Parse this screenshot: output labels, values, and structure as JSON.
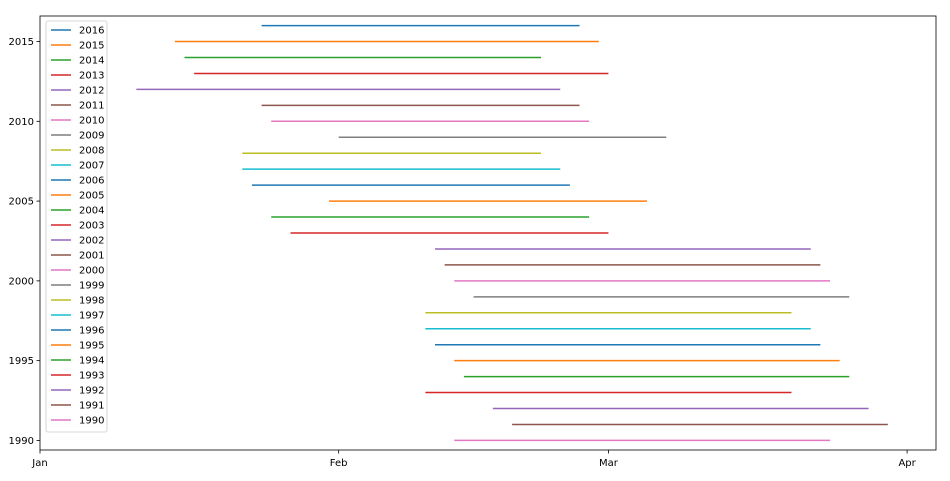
{
  "chart_data": {
    "type": "line",
    "title": "",
    "xlabel": "",
    "ylabel": "",
    "xlim": [
      "Jan 1",
      "Apr 4"
    ],
    "ylim": [
      1989.4,
      2016.6
    ],
    "x_ticks": [
      {
        "label": "Jan",
        "day": 0
      },
      {
        "label": "Feb",
        "day": 31
      },
      {
        "label": "Mar",
        "day": 59
      },
      {
        "label": "Apr",
        "day": 90
      }
    ],
    "y_ticks": [
      {
        "label": "1990",
        "value": 1990
      },
      {
        "label": "1995",
        "value": 1995
      },
      {
        "label": "2000",
        "value": 2000
      },
      {
        "label": "2005",
        "value": 2005
      },
      {
        "label": "2010",
        "value": 2010
      },
      {
        "label": "2015",
        "value": 2015
      }
    ],
    "grid": false,
    "legend": "upper-left",
    "colors": [
      "#1f77b4",
      "#ff7f0e",
      "#2ca02c",
      "#d62728",
      "#9467bd",
      "#8c564b",
      "#e377c2",
      "#7f7f7f",
      "#bcbd22",
      "#17becf"
    ],
    "series": [
      {
        "name": "2016",
        "year": 2016,
        "start": "Jan 24",
        "end": "Feb 26"
      },
      {
        "name": "2015",
        "year": 2015,
        "start": "Jan 15",
        "end": "Feb 28"
      },
      {
        "name": "2014",
        "year": 2014,
        "start": "Jan 16",
        "end": "Feb 22"
      },
      {
        "name": "2013",
        "year": 2013,
        "start": "Jan 17",
        "end": "Mar 1"
      },
      {
        "name": "2012",
        "year": 2012,
        "start": "Jan 11",
        "end": "Feb 24"
      },
      {
        "name": "2011",
        "year": 2011,
        "start": "Jan 24",
        "end": "Feb 26"
      },
      {
        "name": "2010",
        "year": 2010,
        "start": "Jan 25",
        "end": "Feb 27"
      },
      {
        "name": "2009",
        "year": 2009,
        "start": "Feb 1",
        "end": "Mar 7"
      },
      {
        "name": "2008",
        "year": 2008,
        "start": "Jan 22",
        "end": "Feb 22"
      },
      {
        "name": "2007",
        "year": 2007,
        "start": "Jan 22",
        "end": "Feb 24"
      },
      {
        "name": "2006",
        "year": 2006,
        "start": "Jan 23",
        "end": "Feb 25"
      },
      {
        "name": "2005",
        "year": 2005,
        "start": "Jan 31",
        "end": "Mar 5"
      },
      {
        "name": "2004",
        "year": 2004,
        "start": "Jan 25",
        "end": "Feb 27"
      },
      {
        "name": "2003",
        "year": 2003,
        "start": "Jan 27",
        "end": "Feb 29"
      },
      {
        "name": "2002",
        "year": 2002,
        "start": "Feb 11",
        "end": "Mar 22"
      },
      {
        "name": "2001",
        "year": 2001,
        "start": "Feb 12",
        "end": "Mar 23"
      },
      {
        "name": "2000",
        "year": 2000,
        "start": "Feb 13",
        "end": "Mar 24"
      },
      {
        "name": "1999",
        "year": 1999,
        "start": "Feb 15",
        "end": "Mar 26"
      },
      {
        "name": "1998",
        "year": 1998,
        "start": "Feb 10",
        "end": "Mar 20"
      },
      {
        "name": "1997",
        "year": 1997,
        "start": "Feb 10",
        "end": "Mar 22"
      },
      {
        "name": "1996",
        "year": 1996,
        "start": "Feb 11",
        "end": "Mar 23"
      },
      {
        "name": "1995",
        "year": 1995,
        "start": "Feb 13",
        "end": "Mar 25"
      },
      {
        "name": "1994",
        "year": 1994,
        "start": "Feb 14",
        "end": "Mar 26"
      },
      {
        "name": "1993",
        "year": 1993,
        "start": "Feb 10",
        "end": "Mar 20"
      },
      {
        "name": "1992",
        "year": 1992,
        "start": "Feb 17",
        "end": "Mar 28"
      },
      {
        "name": "1991",
        "year": 1991,
        "start": "Feb 19",
        "end": "Mar 30"
      },
      {
        "name": "1990",
        "year": 1990,
        "start": "Feb 13",
        "end": "Mar 24"
      }
    ]
  }
}
